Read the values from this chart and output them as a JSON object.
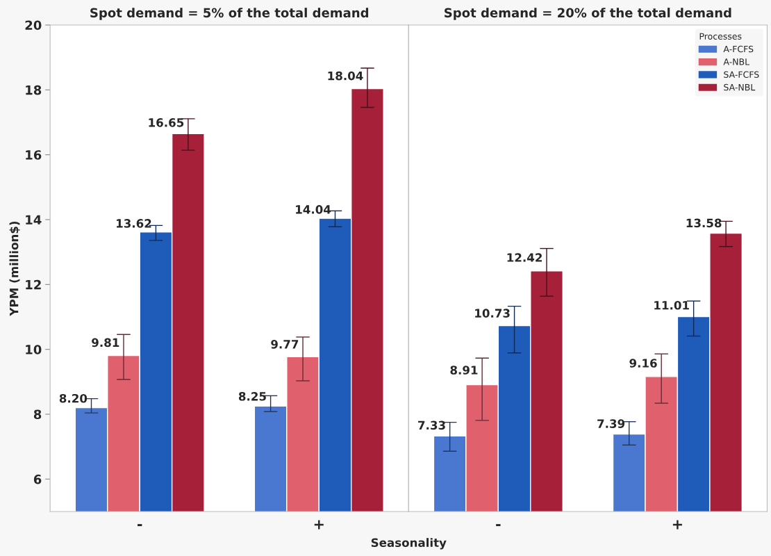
{
  "chart_data": [
    {
      "type": "bar",
      "title": "Spot demand = 5% of the total demand",
      "xlabel": "Seasonality",
      "ylabel": "YPM (million$)",
      "categories": [
        "-",
        "+"
      ],
      "ylim": [
        5,
        20
      ],
      "yticks": [
        6,
        8,
        10,
        12,
        14,
        16,
        18,
        20
      ],
      "grid": false,
      "legend": false,
      "series": [
        {
          "color": "#4a78d0",
          "values": [
            8.2,
            8.25
          ],
          "value_labels": [
            "8.20",
            "8.25"
          ],
          "errors": [
            [
              8.04,
              8.48
            ],
            [
              8.08,
              8.57
            ]
          ]
        },
        {
          "color": "#e0606e",
          "values": [
            9.81,
            9.77
          ],
          "value_labels": [
            "9.81",
            "9.77"
          ],
          "errors": [
            [
              9.07,
              10.46
            ],
            [
              9.03,
              10.38
            ]
          ]
        },
        {
          "color": "#1f5bb8",
          "values": [
            13.62,
            14.04
          ],
          "value_labels": [
            "13.62",
            "14.04"
          ],
          "errors": [
            [
              13.36,
              13.82
            ],
            [
              13.78,
              14.27
            ]
          ]
        },
        {
          "color": "#a6203a",
          "values": [
            16.65,
            18.04
          ],
          "value_labels": [
            "16.65",
            "18.04"
          ],
          "errors": [
            [
              16.14,
              17.11
            ],
            [
              17.46,
              18.67
            ]
          ]
        }
      ]
    },
    {
      "type": "bar",
      "title": "Spot demand = 20% of the total demand",
      "categories": [
        "-",
        "+"
      ],
      "ylim": [
        5,
        20
      ],
      "yticks": [
        6,
        8,
        10,
        12,
        14,
        16,
        18,
        20
      ],
      "tick_labels": "x",
      "grid": false,
      "legend": "top right",
      "legend_title": "Processes",
      "series": [
        {
          "name": "A-FCFS",
          "color": "#4a78d0",
          "values": [
            7.33,
            7.39
          ],
          "value_labels": [
            "7.33",
            "7.39"
          ],
          "errors": [
            [
              6.86,
              7.75
            ],
            [
              7.05,
              7.77
            ]
          ]
        },
        {
          "name": "A-NBL",
          "color": "#e0606e",
          "values": [
            8.91,
            9.16
          ],
          "value_labels": [
            "8.91",
            "9.16"
          ],
          "errors": [
            [
              7.81,
              9.73
            ],
            [
              8.34,
              9.86
            ]
          ]
        },
        {
          "name": "SA-FCFS",
          "color": "#1f5bb8",
          "values": [
            10.73,
            11.01
          ],
          "value_labels": [
            "10.73",
            "11.01"
          ],
          "errors": [
            [
              9.89,
              11.33
            ],
            [
              10.41,
              11.49
            ]
          ]
        },
        {
          "name": "SA-NBL",
          "color": "#a6203a",
          "values": [
            12.42,
            13.58
          ],
          "value_labels": [
            "12.42",
            "13.58"
          ],
          "errors": [
            [
              11.64,
              13.11
            ],
            [
              13.17,
              13.95
            ]
          ]
        }
      ]
    }
  ]
}
